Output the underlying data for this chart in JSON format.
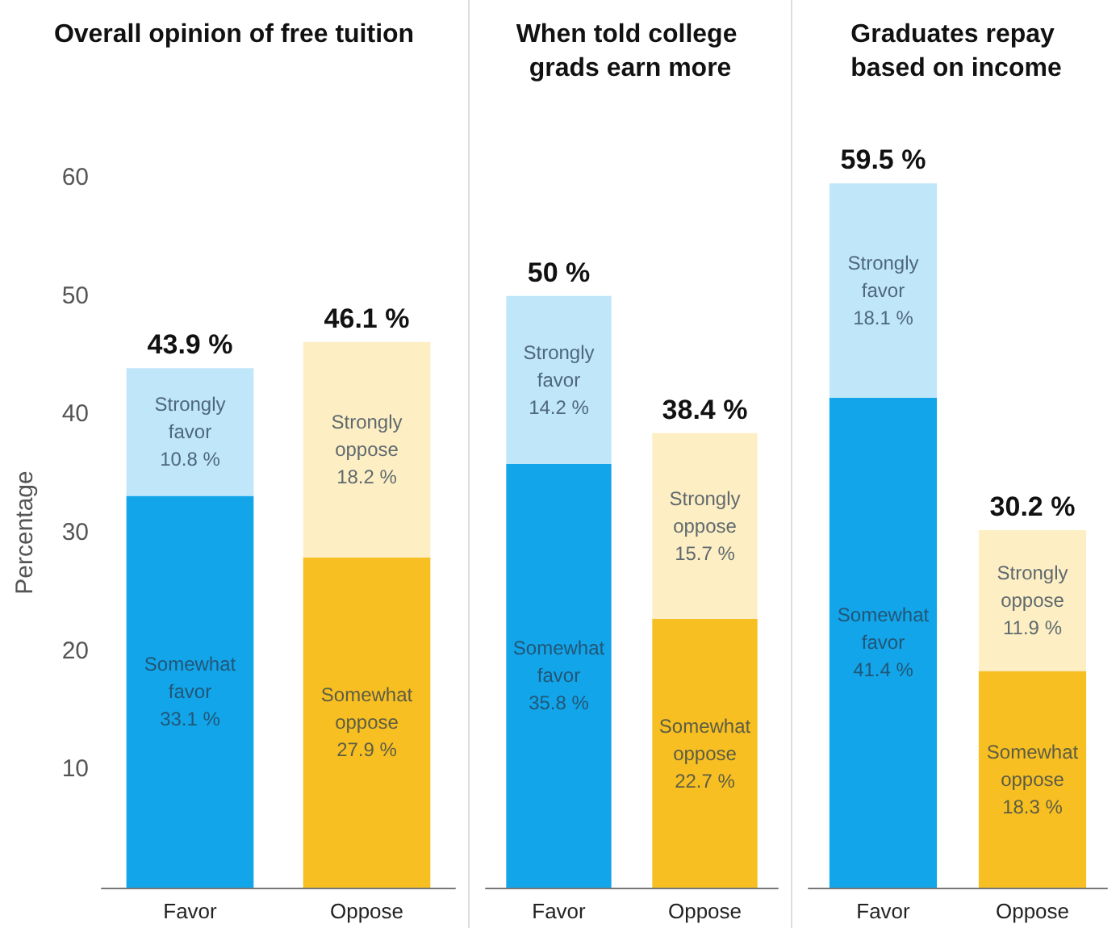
{
  "chart_data": [
    {
      "type": "bar",
      "title": "Overall opinion of free tuition",
      "ylabel": "Percentage",
      "categories": [
        "Favor",
        "Oppose"
      ],
      "stacked": true,
      "ylim": [
        0,
        60
      ],
      "yticks": [
        10,
        20,
        30,
        40,
        50,
        60
      ],
      "grid": false,
      "tick_labels": true,
      "series": [
        {
          "colors": [
            "#12a5ea",
            "#f8bf22"
          ],
          "values": [
            33.1,
            27.9
          ],
          "value_labels": [
            "Somewhat\nfavor\n33.1 %",
            "Somewhat\noppose\n27.9 %"
          ]
        },
        {
          "colors": [
            "#bfe6f9",
            "#fdeec4"
          ],
          "values": [
            10.8,
            18.2
          ],
          "value_labels": [
            "Strongly\nfavor\n10.8 %",
            "Strongly\noppose\n18.2 %"
          ]
        }
      ],
      "totals": [
        "43.9 %",
        "46.1 %"
      ]
    },
    {
      "type": "bar",
      "title": "When told college grads earn more",
      "categories": [
        "Favor",
        "Oppose"
      ],
      "stacked": true,
      "ylim": [
        0,
        60
      ],
      "yticks": [
        10,
        20,
        30,
        40,
        50,
        60
      ],
      "grid": false,
      "tick_labels": "x",
      "series": [
        {
          "colors": [
            "#12a5ea",
            "#f8bf22"
          ],
          "values": [
            35.8,
            22.7
          ],
          "value_labels": [
            "Somewhat\nfavor\n35.8 %",
            "Somewhat\noppose\n22.7 %"
          ]
        },
        {
          "colors": [
            "#bfe6f9",
            "#fdeec4"
          ],
          "values": [
            14.2,
            15.7
          ],
          "value_labels": [
            "Strongly\nfavor\n14.2 %",
            "Strongly\noppose\n15.7 %"
          ]
        }
      ],
      "totals": [
        "50 %",
        "38.4 %"
      ]
    },
    {
      "type": "bar",
      "title": "Graduates repay based on income",
      "categories": [
        "Favor",
        "Oppose"
      ],
      "stacked": true,
      "ylim": [
        0,
        60
      ],
      "yticks": [
        10,
        20,
        30,
        40,
        50,
        60
      ],
      "grid": false,
      "tick_labels": "x",
      "series": [
        {
          "colors": [
            "#12a5ea",
            "#f8bf22"
          ],
          "values": [
            41.4,
            18.3
          ],
          "value_labels": [
            "Somewhat\nfavor\n41.4 %",
            "Somewhat\noppose\n18.3 %"
          ]
        },
        {
          "colors": [
            "#bfe6f9",
            "#fdeec4"
          ],
          "values": [
            18.1,
            11.9
          ],
          "value_labels": [
            "Strongly\nfavor\n18.1 %",
            "Strongly\noppose\n11.9 %"
          ]
        }
      ],
      "totals": [
        "59.5 %",
        "30.2 %"
      ]
    }
  ]
}
